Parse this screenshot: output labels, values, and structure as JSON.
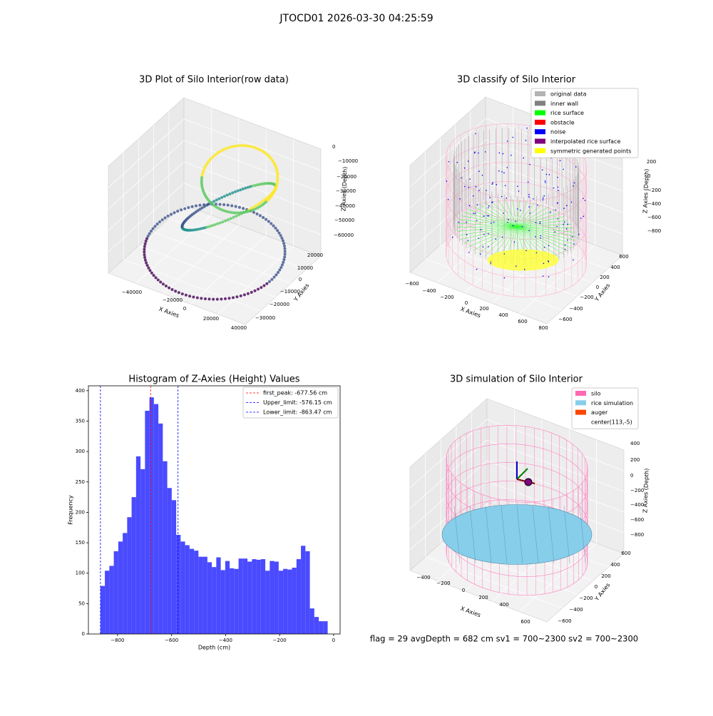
{
  "title": "JTOCD01 2026-03-30 04:25:59",
  "footer": "flag = 29  avgDepth = 682 cm  sv1 = 700~2300  sv2 = 700~2300",
  "chart_data": [
    {
      "type": "scatter3d",
      "title": "3D Plot of Silo Interior(row data)",
      "xlabel": "X Axies",
      "ylabel": "Y Axies",
      "zlabel": "Z Axies (Depth)",
      "xticks": [
        {
          "value": -40000,
          "label": "−40000"
        },
        {
          "value": -20000,
          "label": "−20000"
        },
        0,
        20000,
        40000
      ],
      "yticks": [
        20000,
        10000,
        0,
        {
          "value": -10000,
          "label": "−10000"
        },
        {
          "value": -20000,
          "label": "−20000"
        },
        {
          "value": -30000,
          "label": "−30000"
        }
      ],
      "zticks": [
        0,
        {
          "value": -10000,
          "label": "−10000"
        },
        {
          "value": -20000,
          "label": "−20000"
        },
        {
          "value": -30000,
          "label": "−30000"
        },
        {
          "value": -40000,
          "label": "−40000"
        },
        {
          "value": -50000,
          "label": "−50000"
        },
        {
          "value": -60000,
          "label": "−60000"
        }
      ]
    },
    {
      "type": "scatter3d",
      "title": "3D classify of Silo Interior",
      "xlabel": "X Axies",
      "ylabel": "Y Axies",
      "zlabel": "Z Axies (Depth)",
      "xticks": [
        {
          "value": -600,
          "label": "−600"
        },
        {
          "value": -400,
          "label": "−400"
        },
        {
          "value": -200,
          "label": "−200"
        },
        0,
        200,
        400,
        600,
        800
      ],
      "yticks": [
        600,
        400,
        200,
        0,
        {
          "value": -200,
          "label": "−200"
        },
        {
          "value": -400,
          "label": "−400"
        },
        {
          "value": -600,
          "label": "−600"
        }
      ],
      "zticks": [
        200,
        0,
        {
          "value": -200,
          "label": "−200"
        },
        {
          "value": -400,
          "label": "−400"
        },
        {
          "value": -600,
          "label": "−600"
        },
        {
          "value": -800,
          "label": "−800"
        }
      ],
      "legend": [
        {
          "name": "original data",
          "color": "#b3b3b3"
        },
        {
          "name": "inner wall",
          "color": "#808080"
        },
        {
          "name": "rice surface",
          "color": "#00ff00"
        },
        {
          "name": "obstacle",
          "color": "#ff0000"
        },
        {
          "name": "noise",
          "color": "#0000ff"
        },
        {
          "name": "interpolated rice surface",
          "color": "#800080"
        },
        {
          "name": "symmetric generated points",
          "color": "#ffff00"
        }
      ]
    },
    {
      "type": "histogram",
      "title": "Histogram of Z-Axies (Height) Values",
      "xlabel": "Depth (cm)",
      "ylabel": "Frequency",
      "color": "#4a4aff",
      "bins": [
        -863.5,
        -847,
        -830.5,
        -814,
        -797.5,
        -781,
        -764.5,
        -748,
        -731.5,
        -715,
        -698.5,
        -682,
        -665.5,
        -649,
        -632.5,
        -616,
        -599.5,
        -583,
        -566.5,
        -550,
        -533.5,
        -517,
        -500.5,
        -484,
        -467.5,
        -451,
        -434.5,
        -418,
        -401.5,
        -385,
        -368.5,
        -352,
        -335.5,
        -319,
        -302.5,
        -286,
        -269.5,
        -253,
        -236.5,
        -220,
        -203.5,
        -187,
        -170.5,
        -154,
        -137.5,
        -121,
        -104.5,
        -88,
        -71.5,
        -55,
        -38.5,
        -22
      ],
      "values": [
        79,
        104,
        112,
        136,
        152,
        166,
        192,
        225,
        292,
        271,
        367,
        389,
        378,
        346,
        284,
        240,
        220,
        163,
        152,
        146,
        140,
        137,
        127,
        127,
        118,
        110,
        126,
        105,
        120,
        108,
        107,
        124,
        124,
        119,
        123,
        122,
        123,
        104,
        120,
        119,
        104,
        107,
        106,
        109,
        123,
        145,
        136,
        42,
        28,
        21,
        21
      ],
      "xlim": [
        -908,
        24
      ],
      "ylim": [
        0,
        408
      ],
      "xticks": [
        {
          "value": -800,
          "label": "−800"
        },
        {
          "value": -600,
          "label": "−600"
        },
        {
          "value": -400,
          "label": "−400"
        },
        {
          "value": -200,
          "label": "−200"
        },
        0
      ],
      "yticks": [
        0,
        50,
        100,
        150,
        200,
        250,
        300,
        350,
        400
      ],
      "lines": [
        {
          "name": "first_peak: -677.56 cm",
          "value": -677.56,
          "color": "#ff0000"
        },
        {
          "name": "Upper_limit: -576.15 cm",
          "value": -576.15,
          "color": "#0000ff"
        },
        {
          "name": "Lower_limit: -863.47 cm",
          "value": -863.47,
          "color": "#0000ff"
        }
      ]
    },
    {
      "type": "surface3d",
      "title": "3D simulation of Silo Interior",
      "xlabel": "X Axies",
      "ylabel": "Y Axies",
      "zlabel": "Z Axies (Depth)",
      "xticks": [
        {
          "value": -400,
          "label": "−400"
        },
        {
          "value": -200,
          "label": "−200"
        },
        0,
        200,
        400,
        600
      ],
      "yticks": [
        600,
        400,
        200,
        0,
        {
          "value": -200,
          "label": "−200"
        },
        {
          "value": -400,
          "label": "−400"
        },
        {
          "value": -600,
          "label": "−600"
        }
      ],
      "zticks": [
        400,
        200,
        0,
        {
          "value": -200,
          "label": "−200"
        },
        {
          "value": -400,
          "label": "−400"
        },
        {
          "value": -600,
          "label": "−600"
        },
        {
          "value": -800,
          "label": "−800"
        }
      ],
      "legend": [
        {
          "name": "silo",
          "color": "#ff69b4"
        },
        {
          "name": "rice simulation",
          "color": "#87ceeb"
        },
        {
          "name": "auger",
          "color": "#ff4500"
        },
        {
          "name": "center(113,-5)",
          "color": "#ffffff"
        }
      ]
    }
  ]
}
